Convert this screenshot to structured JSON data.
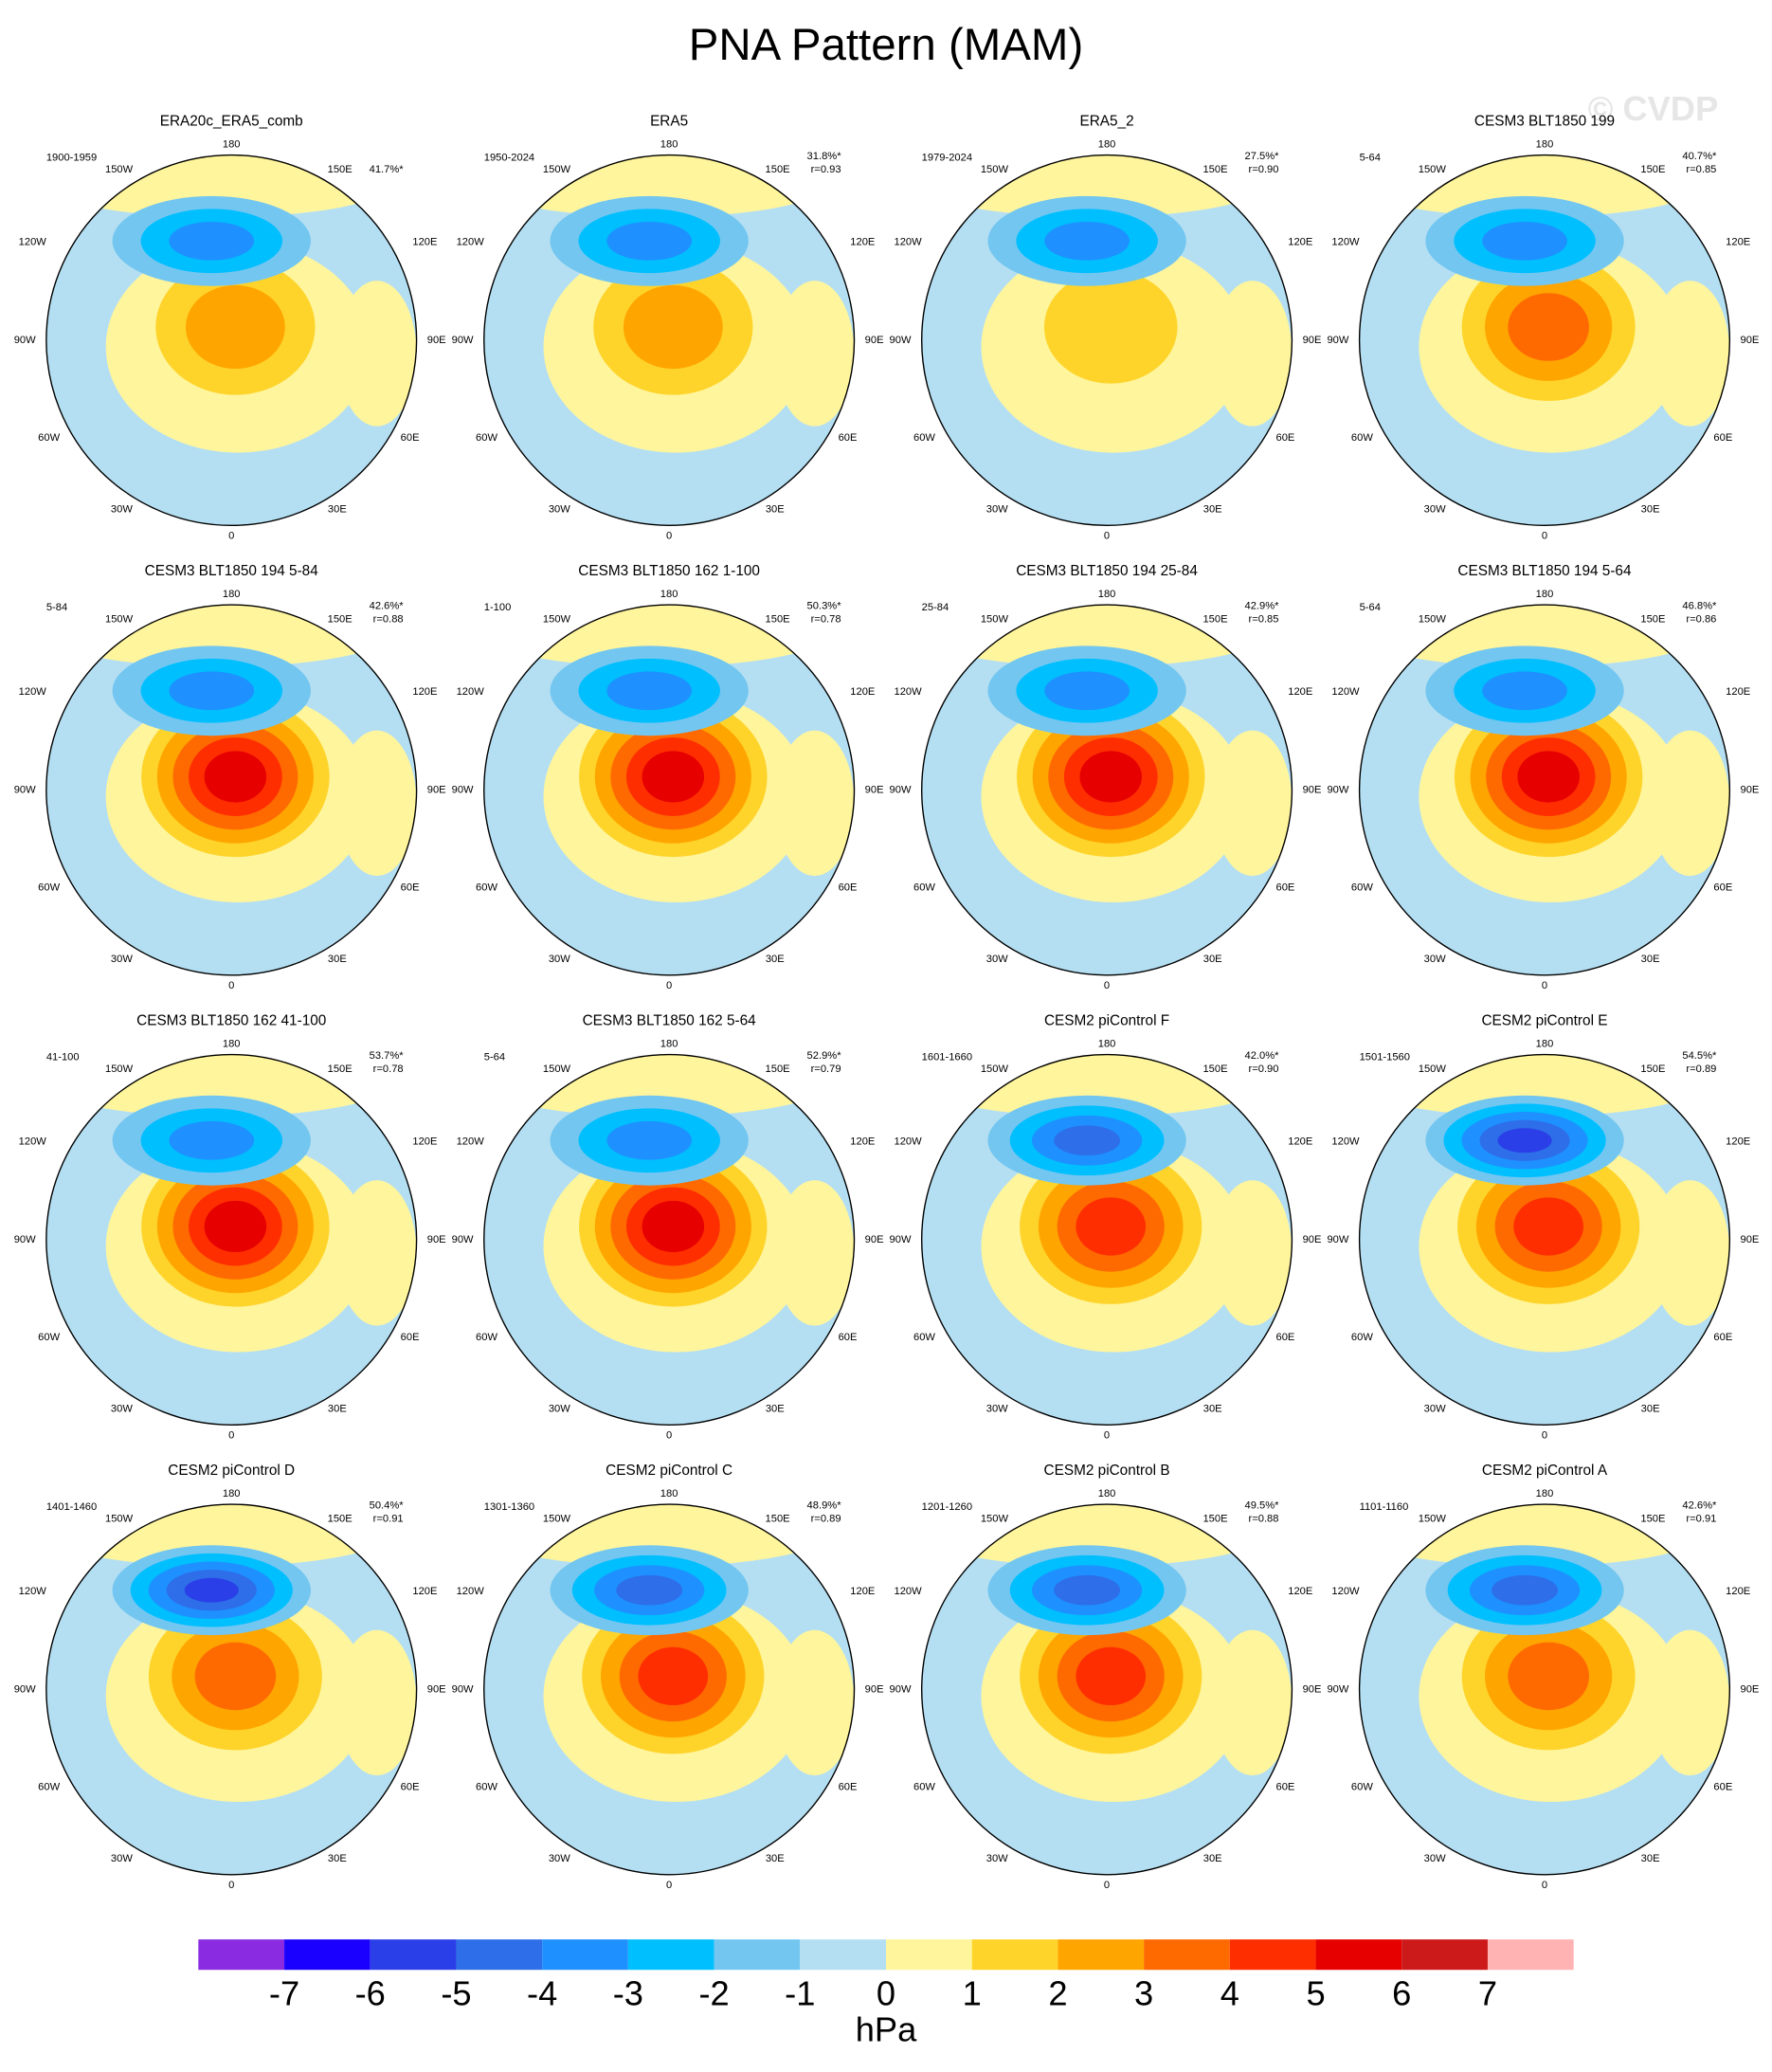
{
  "title": "PNA Pattern (MAM)",
  "watermark": "© CVDP",
  "longitude_labels": [
    "180",
    "150W",
    "150E",
    "120W",
    "120E",
    "90W",
    "90E",
    "60W",
    "60E",
    "30W",
    "30E",
    "0"
  ],
  "panels": [
    {
      "title": "ERA20c_ERA5_comb",
      "period": "1900-1959",
      "variance": "41.7%*"
    },
    {
      "title": "ERA5",
      "period": "1950-2024",
      "variance": "31.8%*",
      "r": "r=0.93"
    },
    {
      "title": "ERA5_2",
      "period": "1979-2024",
      "variance": "27.5%*",
      "r": "r=0.90"
    },
    {
      "title": "CESM3 BLT1850 199",
      "period": "5-64",
      "variance": "40.7%*",
      "r": "r=0.85"
    },
    {
      "title": "CESM3 BLT1850 194 5-84",
      "period": "5-84",
      "variance": "42.6%*",
      "r": "r=0.88"
    },
    {
      "title": "CESM3 BLT1850 162 1-100",
      "period": "1-100",
      "variance": "50.3%*",
      "r": "r=0.78"
    },
    {
      "title": "CESM3 BLT1850 194 25-84",
      "period": "25-84",
      "variance": "42.9%*",
      "r": "r=0.85"
    },
    {
      "title": "CESM3 BLT1850 194 5-64",
      "period": "5-64",
      "variance": "46.8%*",
      "r": "r=0.86"
    },
    {
      "title": "CESM3 BLT1850 162 41-100",
      "period": "41-100",
      "variance": "53.7%*",
      "r": "r=0.78"
    },
    {
      "title": "CESM3 BLT1850 162 5-64",
      "period": "5-64",
      "variance": "52.9%*",
      "r": "r=0.79"
    },
    {
      "title": "CESM2 piControl F",
      "period": "1601-1660",
      "variance": "42.0%*",
      "r": "r=0.90"
    },
    {
      "title": "CESM2 piControl E",
      "period": "1501-1560",
      "variance": "54.5%*",
      "r": "r=0.89"
    },
    {
      "title": "CESM2 piControl D",
      "period": "1401-1460",
      "variance": "50.4%*",
      "r": "r=0.91"
    },
    {
      "title": "CESM2 piControl C",
      "period": "1301-1360",
      "variance": "48.9%*",
      "r": "r=0.89"
    },
    {
      "title": "CESM2 piControl B",
      "period": "1201-1260",
      "variance": "49.5%*",
      "r": "r=0.88"
    },
    {
      "title": "CESM2 piControl A",
      "period": "1101-1160",
      "variance": "42.6%*",
      "r": "r=0.91"
    }
  ],
  "colorbar": {
    "levels": [
      -7,
      -6,
      -5,
      -4,
      -3,
      -2,
      -1,
      0,
      1,
      2,
      3,
      4,
      5,
      6,
      7
    ],
    "colors": [
      "#8a2be2",
      "#1a00ff",
      "#2a3fe8",
      "#2e6ee8",
      "#1e90ff",
      "#00bfff",
      "#73c6f0",
      "#b4dff2",
      "#fff59d",
      "#ffd42a",
      "#ffa500",
      "#ff6a00",
      "#ff2e00",
      "#e60000",
      "#cc1a1a",
      "#ffb3b3"
    ],
    "unit": "hPa"
  }
}
